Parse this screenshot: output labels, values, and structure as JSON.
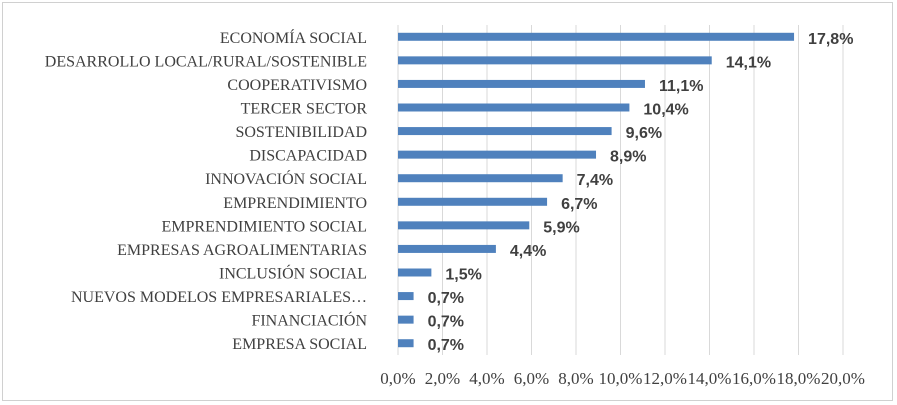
{
  "chart_data": {
    "type": "bar",
    "orientation": "horizontal",
    "categories": [
      "ECONOMÍA SOCIAL",
      "DESARROLLO LOCAL/RURAL/SOSTENIBLE",
      "COOPERATIVISMO",
      "TERCER SECTOR",
      "SOSTENIBILIDAD",
      "DISCAPACIDAD",
      "INNOVACIÓN SOCIAL",
      "EMPRENDIMIENTO",
      "EMPRENDIMIENTO SOCIAL",
      "EMPRESAS AGROALIMENTARIAS",
      "INCLUSIÓN SOCIAL",
      "NUEVOS MODELOS EMPRESARIALES…",
      "FINANCIACIÓN",
      "EMPRESA SOCIAL"
    ],
    "values": [
      17.8,
      14.1,
      11.1,
      10.4,
      9.6,
      8.9,
      7.4,
      6.7,
      5.9,
      4.4,
      1.5,
      0.7,
      0.7,
      0.7
    ],
    "value_labels": [
      "17,8%",
      "14,1%",
      "11,1%",
      "10,4%",
      "9,6%",
      "8,9%",
      "7,4%",
      "6,7%",
      "5,9%",
      "4,4%",
      "1,5%",
      "0,7%",
      "0,7%",
      "0,7%"
    ],
    "x_ticks": [
      "0,0%",
      "2,0%",
      "4,0%",
      "6,0%",
      "8,0%",
      "10,0%",
      "12,0%",
      "14,0%",
      "16,0%",
      "18,0%",
      "20,0%"
    ],
    "xlim": [
      0,
      20
    ],
    "grid": true,
    "bar_color": "#4f81bd",
    "title": "",
    "xlabel": "",
    "ylabel": ""
  }
}
